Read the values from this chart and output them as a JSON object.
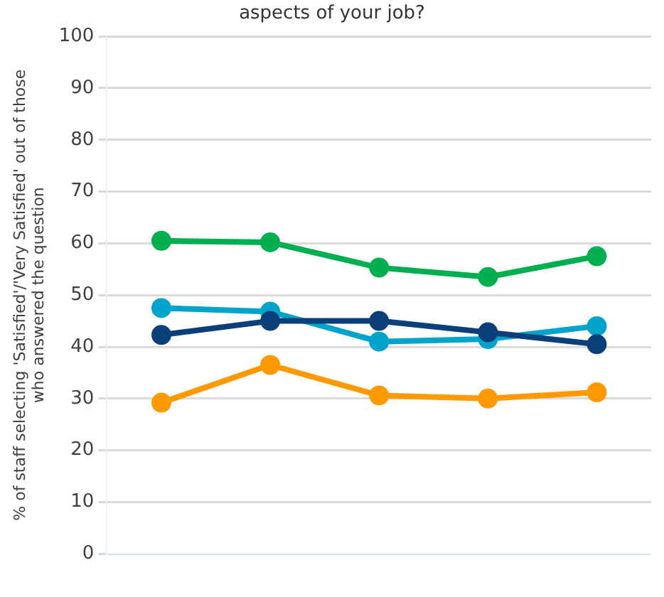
{
  "chart_data": {
    "type": "line",
    "title": "aspects of your job?",
    "ylabel": "% of staff selecting 'Satisfied'/'Very Satisfied' out of those who answered the question",
    "categories": [
      null,
      null,
      null,
      null,
      null
    ],
    "series": [
      {
        "color": "#00b050",
        "values": [
          60.5,
          60.2,
          55.3,
          53.5,
          57.5
        ]
      },
      {
        "color": "#00a3cc",
        "values": [
          47.5,
          46.8,
          41,
          41.5,
          44
        ]
      },
      {
        "color": "#0b3f7a",
        "values": [
          42.3,
          45,
          45,
          42.8,
          40.5
        ]
      },
      {
        "color": "#ff9900",
        "values": [
          29.2,
          36.5,
          30.6,
          30,
          31.2
        ]
      }
    ],
    "ylim": [
      0,
      100
    ],
    "yticks": [
      0,
      10,
      20,
      30,
      40,
      50,
      60,
      70,
      80,
      90,
      100
    ],
    "grid": "y",
    "marker": "circle",
    "line_style": "solid",
    "legend": false
  }
}
